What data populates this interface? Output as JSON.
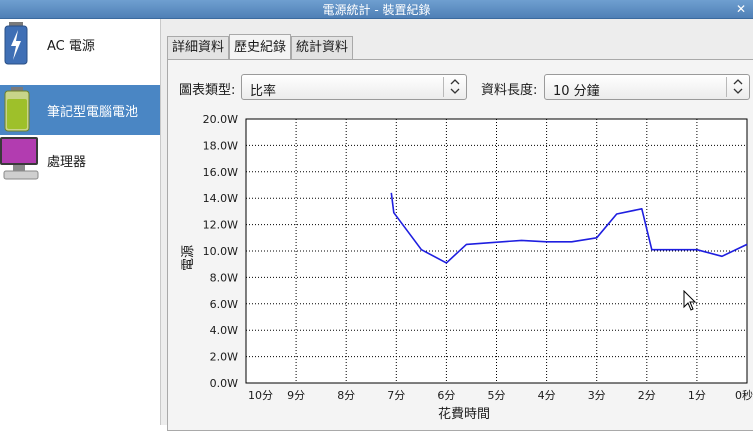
{
  "window": {
    "title": "電源統計 - 裝置紀錄"
  },
  "sidebar": {
    "items": [
      {
        "label": "AC 電源",
        "icon": "ac-power-icon",
        "selected": false
      },
      {
        "label": "筆記型電腦電池",
        "icon": "laptop-battery-icon",
        "selected": true
      },
      {
        "label": "處理器",
        "icon": "processor-monitor-icon",
        "selected": false
      }
    ]
  },
  "tabs": [
    {
      "label": "詳細資料",
      "active": false
    },
    {
      "label": "歷史紀錄",
      "active": true
    },
    {
      "label": "統計資料",
      "active": false
    }
  ],
  "controls": {
    "graph_type_label": "圖表類型:",
    "graph_type_value": "比率",
    "data_length_label": "資料長度:",
    "data_length_value": "10 分鐘"
  },
  "chart_data": {
    "type": "line",
    "ylabel": "電源",
    "xlabel": "花費時間",
    "ylim": [
      0,
      20
    ],
    "y_ticks": [
      "0.0W",
      "2.0W",
      "4.0W",
      "6.0W",
      "8.0W",
      "10.0W",
      "12.0W",
      "14.0W",
      "16.0W",
      "18.0W",
      "20.0W"
    ],
    "x_ticks": [
      "10分",
      "9分",
      "8分",
      "7分",
      "6分",
      "5分",
      "4分",
      "3分",
      "2分",
      "1分",
      "0秒"
    ],
    "xlim": [
      10,
      0
    ],
    "x_unit": "minutes ago",
    "grid": true,
    "line_color": "#1f1fe0",
    "series": [
      {
        "x": [
          7.1,
          7.05,
          6.5,
          6.0,
          5.6,
          4.5,
          4.0,
          3.5,
          3.0,
          2.6,
          2.1,
          1.9,
          1.0,
          0.5,
          0.0
        ],
        "values": [
          14.4,
          12.9,
          10.1,
          9.1,
          10.5,
          10.8,
          10.7,
          10.7,
          11.0,
          12.8,
          13.2,
          10.1,
          10.1,
          9.6,
          10.5
        ]
      }
    ]
  }
}
